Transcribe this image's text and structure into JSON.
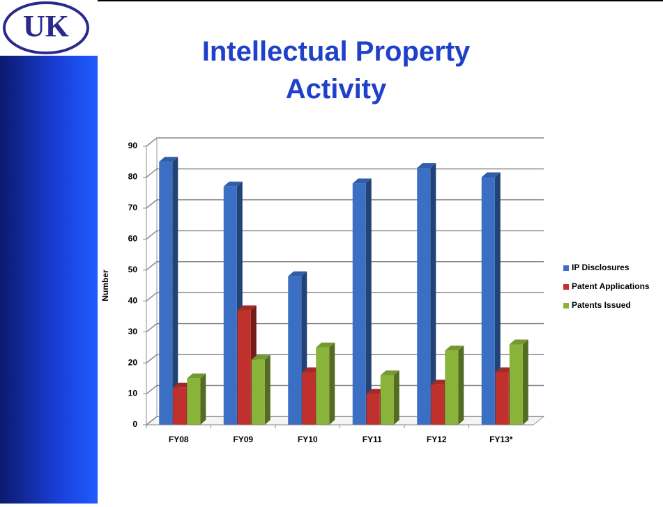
{
  "logo": "UK",
  "chart_data": {
    "type": "bar3d",
    "title": "Intellectual Property Activity",
    "ylabel": "Number",
    "categories": [
      "FY08",
      "FY09",
      "FY10",
      "FY11",
      "FY12",
      "FY13*"
    ],
    "series": [
      {
        "name": "IP Disclosures",
        "color": "#3a6fc4",
        "values": [
          85,
          77,
          48,
          78,
          83,
          80
        ]
      },
      {
        "name": "Patent Applications",
        "color": "#c0312d",
        "values": [
          12,
          37,
          17,
          10,
          13,
          17
        ]
      },
      {
        "name": "Patents Issued",
        "color": "#8ab33a",
        "values": [
          15,
          21,
          25,
          16,
          24,
          26
        ]
      }
    ],
    "ylim": [
      0,
      90
    ],
    "yticks": [
      0,
      10,
      20,
      30,
      40,
      50,
      60,
      70,
      80,
      90
    ],
    "grid": true,
    "legend": "right"
  }
}
